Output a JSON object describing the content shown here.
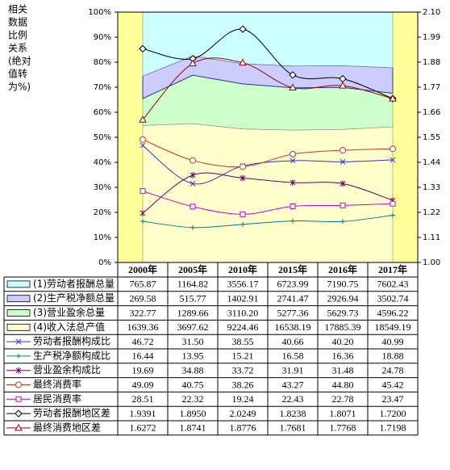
{
  "chart_data": {
    "type": "combo",
    "y_label_lines": [
      "相关",
      "数据",
      "比例",
      "关系",
      "(绝对",
      "值转",
      "为%)"
    ],
    "categories": [
      "2000年",
      "2005年",
      "2010年",
      "2015年",
      "2016年",
      "2017年"
    ],
    "ylim": [
      0,
      100
    ],
    "yticks": [
      {
        "value": 0,
        "label": "0%"
      },
      {
        "value": 10,
        "label": "10%"
      },
      {
        "value": 20,
        "label": "20%"
      },
      {
        "value": 30,
        "label": "30%"
      },
      {
        "value": 40,
        "label": "40%"
      },
      {
        "value": 50,
        "label": "50%"
      },
      {
        "value": 60,
        "label": "60%"
      },
      {
        "value": 70,
        "label": "70%"
      },
      {
        "value": 80,
        "label": "80%"
      },
      {
        "value": 90,
        "label": "90%"
      },
      {
        "value": 100,
        "label": "100%"
      }
    ],
    "y2lim": [
      1.0,
      2.1
    ],
    "y2ticks": [
      {
        "value": 1.0,
        "label": "1.00"
      },
      {
        "value": 1.11,
        "label": "1.11"
      },
      {
        "value": 1.22,
        "label": "1.22"
      },
      {
        "value": 1.33,
        "label": "1.33"
      },
      {
        "value": 1.44,
        "label": "1.44"
      },
      {
        "value": 1.55,
        "label": "1.55"
      },
      {
        "value": 1.66,
        "label": "1.66"
      },
      {
        "value": 1.77,
        "label": "1.77"
      },
      {
        "value": 1.88,
        "label": "1.88"
      },
      {
        "value": 1.99,
        "label": "1.99"
      },
      {
        "value": 2.1,
        "label": "2.10"
      }
    ],
    "area_stacking": "percent",
    "plot_background": "#ffff99",
    "series": [
      {
        "name": "(1)劳动者报酬总量",
        "kind": "area",
        "color": "#ccffff",
        "values": [
          765.87,
          1164.82,
          3556.17,
          6723.99,
          7190.75,
          7602.43
        ],
        "value_labels": [
          "765.87",
          "1164.82",
          "3556.17",
          "6723.99",
          "7190.75",
          "7602.43"
        ]
      },
      {
        "name": "(2)生产税净额总量",
        "kind": "area",
        "color": "#ccccff",
        "values": [
          269.58,
          515.77,
          1402.91,
          2741.47,
          2926.94,
          3502.74
        ],
        "value_labels": [
          "269.58",
          "515.77",
          "1402.91",
          "2741.47",
          "2926.94",
          "3502.74"
        ]
      },
      {
        "name": "(3)营业盈余总量",
        "kind": "area",
        "color": "#ccffcc",
        "values": [
          322.77,
          1289.66,
          3110.2,
          5277.36,
          5629.73,
          4596.22
        ],
        "value_labels": [
          "322.77",
          "1289.66",
          "3110.20",
          "5277.36",
          "5629.73",
          "4596.22"
        ]
      },
      {
        "name": "(4)收入法总产值",
        "kind": "area",
        "color": "#ffffcc",
        "values": [
          1639.36,
          3697.62,
          9224.46,
          16538.19,
          17885.39,
          18549.19
        ],
        "value_labels": [
          "1639.36",
          "3697.62",
          "9224.46",
          "16538.19",
          "17885.39",
          "18549.19"
        ]
      },
      {
        "name": "劳动者报酬构成比",
        "kind": "line",
        "marker": "x",
        "color": "#3333cc",
        "values": [
          46.72,
          31.5,
          38.55,
          40.66,
          40.2,
          40.99
        ],
        "value_labels": [
          "46.72",
          "31.50",
          "38.55",
          "40.66",
          "40.20",
          "40.99"
        ]
      },
      {
        "name": "生产税净额构成比",
        "kind": "line",
        "marker": "plus",
        "color": "#008080",
        "values": [
          16.44,
          13.95,
          15.21,
          16.58,
          16.36,
          18.88
        ],
        "value_labels": [
          "16.44",
          "13.95",
          "15.21",
          "16.58",
          "16.36",
          "18.88"
        ]
      },
      {
        "name": "营业盈余构成比",
        "kind": "line",
        "marker": "star",
        "color": "#660066",
        "values": [
          19.69,
          34.88,
          33.72,
          31.91,
          31.48,
          24.78
        ],
        "value_labels": [
          "19.69",
          "34.88",
          "33.72",
          "31.91",
          "31.48",
          "24.78"
        ]
      },
      {
        "name": "最终消费率",
        "kind": "line",
        "marker": "circle",
        "color": "#cc3333",
        "values": [
          49.09,
          40.75,
          38.26,
          43.27,
          44.8,
          45.42
        ],
        "value_labels": [
          "49.09",
          "40.75",
          "38.26",
          "43.27",
          "44.80",
          "45.42"
        ]
      },
      {
        "name": "居民消费率",
        "kind": "line",
        "marker": "square",
        "color": "#cc00cc",
        "values": [
          28.51,
          22.32,
          19.24,
          22.43,
          22.78,
          23.47
        ],
        "value_labels": [
          "28.51",
          "22.32",
          "19.24",
          "22.43",
          "22.78",
          "23.47"
        ]
      },
      {
        "name": "劳动者报酬地区差",
        "kind": "line",
        "marker": "diamond",
        "axis": "y2",
        "color": "#000000",
        "values": [
          1.9391,
          1.895,
          2.0249,
          1.8238,
          1.8071,
          1.72
        ],
        "value_labels": [
          "1.9391",
          "1.8950",
          "2.0249",
          "1.8238",
          "1.8071",
          "1.7200"
        ]
      },
      {
        "name": "最终消费地区差",
        "kind": "line",
        "marker": "triangle",
        "axis": "y2",
        "color": "#990000",
        "values": [
          1.6272,
          1.8741,
          1.8776,
          1.7681,
          1.7768,
          1.7198
        ],
        "value_labels": [
          "1.6272",
          "1.8741",
          "1.8776",
          "1.7681",
          "1.7768",
          "1.7198"
        ]
      }
    ]
  }
}
